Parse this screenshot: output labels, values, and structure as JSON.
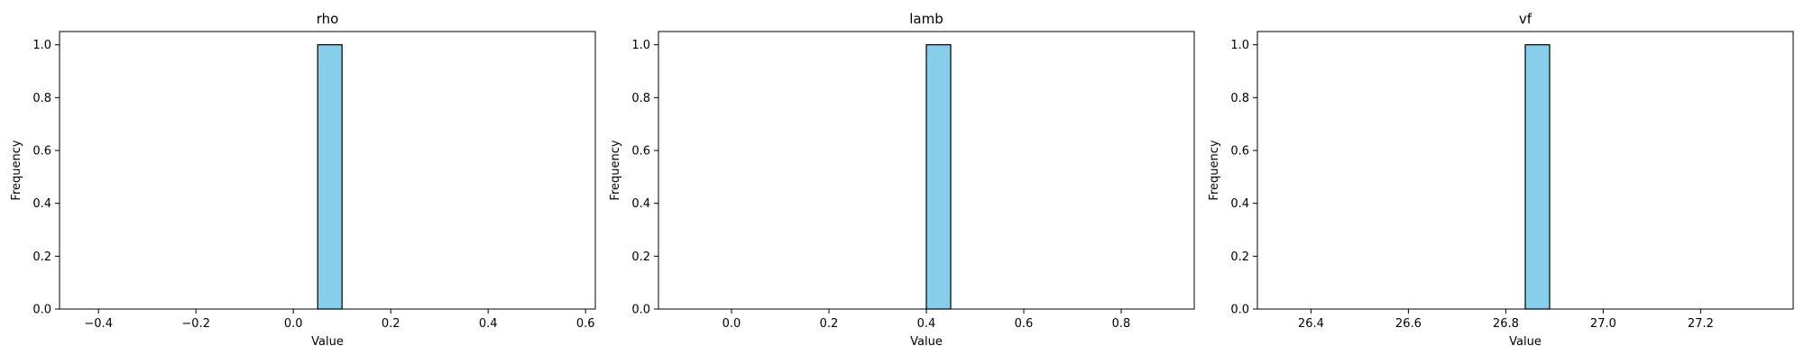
{
  "chart_data": [
    {
      "type": "bar",
      "title": "rho",
      "xlabel": "Value",
      "ylabel": "Frequency",
      "xlim": [
        -0.48,
        0.62
      ],
      "ylim": [
        0,
        1.05
      ],
      "xticks": [
        -0.4,
        -0.2,
        0.0,
        0.2,
        0.4,
        0.6
      ],
      "xtick_labels": [
        "−0.4",
        "−0.2",
        "0.0",
        "0.2",
        "0.4",
        "0.6"
      ],
      "yticks": [
        0.0,
        0.2,
        0.4,
        0.6,
        0.8,
        1.0
      ],
      "ytick_labels": [
        "0.0",
        "0.2",
        "0.4",
        "0.6",
        "0.8",
        "1.0"
      ],
      "bins": {
        "start": -0.4,
        "end": 0.6,
        "count": 20
      },
      "bars": [
        {
          "x0": 0.07,
          "x1": 0.12,
          "value": 1
        }
      ],
      "bar_color": "#87ceeb",
      "edge_color": "#000000"
    },
    {
      "type": "bar",
      "title": "lamb",
      "xlabel": "Value",
      "ylabel": "Frequency",
      "xlim": [
        -0.15,
        0.95
      ],
      "ylim": [
        0,
        1.05
      ],
      "xticks": [
        0.0,
        0.2,
        0.4,
        0.6,
        0.8
      ],
      "xtick_labels": [
        "0.0",
        "0.2",
        "0.4",
        "0.6",
        "0.8"
      ],
      "yticks": [
        0.0,
        0.2,
        0.4,
        0.6,
        0.8,
        1.0
      ],
      "ytick_labels": [
        "0.0",
        "0.2",
        "0.4",
        "0.6",
        "0.8",
        "1.0"
      ],
      "bins": {
        "start": -0.1,
        "end": 0.9,
        "count": 20
      },
      "bars": [
        {
          "x0": 0.4,
          "x1": 0.45,
          "value": 1
        }
      ],
      "bar_color": "#87ceeb",
      "edge_color": "#000000"
    },
    {
      "type": "bar",
      "title": "vf",
      "xlabel": "Value",
      "ylabel": "Frequency",
      "xlim": [
        26.29,
        27.39
      ],
      "ylim": [
        0,
        1.05
      ],
      "xticks": [
        26.4,
        26.6,
        26.8,
        27.0,
        27.2
      ],
      "xtick_labels": [
        "26.4",
        "26.6",
        "26.8",
        "27.0",
        "27.2"
      ],
      "yticks": [
        0.0,
        0.2,
        0.4,
        0.6,
        0.8,
        1.0
      ],
      "ytick_labels": [
        "0.0",
        "0.2",
        "0.4",
        "0.6",
        "0.8",
        "1.0"
      ],
      "bins": {
        "start": 26.34,
        "end": 27.34,
        "count": 20
      },
      "bars": [
        {
          "x0": 26.84,
          "x1": 26.89,
          "value": 1
        }
      ],
      "bar_color": "#87ceeb",
      "edge_color": "#000000"
    }
  ]
}
